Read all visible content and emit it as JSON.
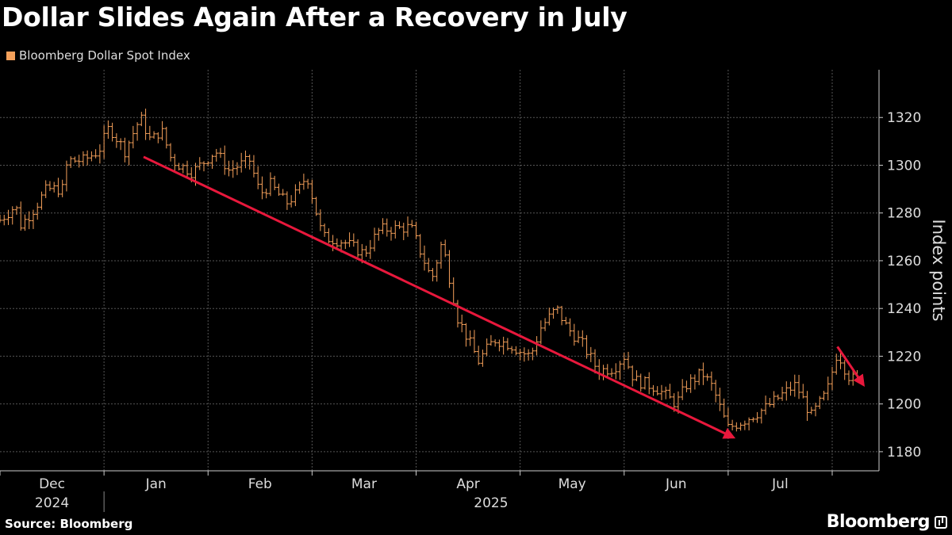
{
  "title": "Dollar Slides Again After a Recovery in July",
  "legend": {
    "label": "Bloomberg Dollar Spot Index",
    "color": "#f5a05a"
  },
  "footer": {
    "source": "Source: Bloomberg",
    "brand": "Bloomberg"
  },
  "chart_data": {
    "type": "ohlc",
    "title": "Dollar Slides Again After a Recovery in July",
    "series_name": "Bloomberg Dollar Spot Index",
    "ylabel": "Index points",
    "ylim": [
      1172,
      1340
    ],
    "yticks": [
      1180,
      1200,
      1220,
      1240,
      1260,
      1280,
      1300,
      1320
    ],
    "xlim": [
      0,
      8.45
    ],
    "months": [
      {
        "label": "Dec",
        "pos": 0.5
      },
      {
        "label": "Jan",
        "pos": 1.5
      },
      {
        "label": "Feb",
        "pos": 2.5
      },
      {
        "label": "Mar",
        "pos": 3.5
      },
      {
        "label": "Apr",
        "pos": 4.5
      },
      {
        "label": "May",
        "pos": 5.5
      },
      {
        "label": "Jun",
        "pos": 6.5
      },
      {
        "label": "Jul",
        "pos": 7.5
      }
    ],
    "years": [
      {
        "label": "2024",
        "pos": 0.5
      },
      {
        "label": "2025",
        "pos": 4.72
      }
    ],
    "anchors": [
      [
        0.0,
        1277
      ],
      [
        0.15,
        1283
      ],
      [
        0.2,
        1275
      ],
      [
        0.3,
        1280
      ],
      [
        0.45,
        1290
      ],
      [
        0.6,
        1290
      ],
      [
        0.65,
        1302
      ],
      [
        0.8,
        1302
      ],
      [
        0.95,
        1306
      ],
      [
        1.05,
        1316
      ],
      [
        1.2,
        1306
      ],
      [
        1.35,
        1320
      ],
      [
        1.45,
        1310
      ],
      [
        1.55,
        1315
      ],
      [
        1.65,
        1302
      ],
      [
        1.85,
        1297
      ],
      [
        2.0,
        1303
      ],
      [
        2.07,
        1306
      ],
      [
        2.2,
        1298
      ],
      [
        2.4,
        1302
      ],
      [
        2.5,
        1288
      ],
      [
        2.6,
        1292
      ],
      [
        2.75,
        1284
      ],
      [
        2.85,
        1288
      ],
      [
        2.95,
        1296
      ],
      [
        3.1,
        1270
      ],
      [
        3.3,
        1268
      ],
      [
        3.5,
        1263
      ],
      [
        3.65,
        1273
      ],
      [
        3.95,
        1274
      ],
      [
        4.15,
        1252
      ],
      [
        4.25,
        1268
      ],
      [
        4.4,
        1236
      ],
      [
        4.6,
        1218
      ],
      [
        4.75,
        1227
      ],
      [
        4.9,
        1225
      ],
      [
        5.0,
        1222
      ],
      [
        5.1,
        1220
      ],
      [
        5.2,
        1232
      ],
      [
        5.35,
        1240
      ],
      [
        5.45,
        1232
      ],
      [
        5.6,
        1225
      ],
      [
        5.75,
        1214
      ],
      [
        5.9,
        1215
      ],
      [
        6.0,
        1220
      ],
      [
        6.1,
        1210
      ],
      [
        6.3,
        1207
      ],
      [
        6.5,
        1200
      ],
      [
        6.6,
        1208
      ],
      [
        6.75,
        1213
      ],
      [
        6.85,
        1207
      ],
      [
        6.95,
        1195
      ],
      [
        7.0,
        1190
      ],
      [
        7.15,
        1193
      ],
      [
        7.35,
        1198
      ],
      [
        7.55,
        1205
      ],
      [
        7.65,
        1208
      ],
      [
        7.8,
        1195
      ],
      [
        7.95,
        1205
      ],
      [
        8.05,
        1222
      ],
      [
        8.15,
        1212
      ],
      [
        8.25,
        1209
      ]
    ],
    "arrows": [
      {
        "from": [
          1.38,
          1303.5
        ],
        "to": [
          7.05,
          1186
        ],
        "color": "#e8183c"
      },
      {
        "from": [
          8.05,
          1224
        ],
        "to": [
          8.3,
          1208
        ],
        "color": "#e8183c"
      }
    ]
  }
}
